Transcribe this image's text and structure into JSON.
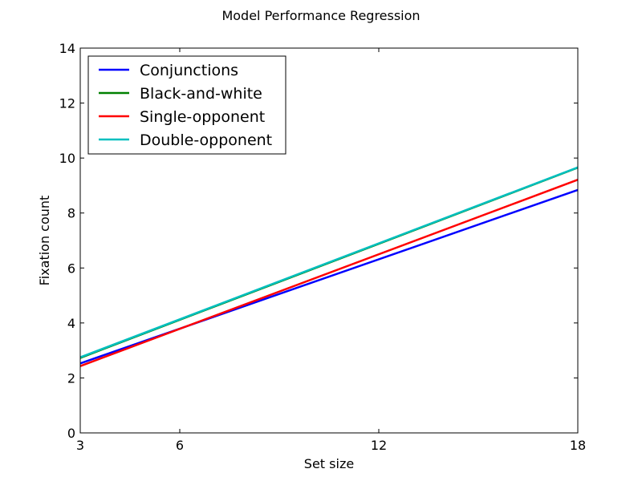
{
  "chart_data": {
    "type": "line",
    "title": "Model Performance Regression",
    "xlabel": "Set size",
    "ylabel": "Fixation count",
    "xlim": [
      3,
      18
    ],
    "ylim": [
      0,
      14
    ],
    "xticks": [
      3,
      6,
      12,
      18
    ],
    "yticks": [
      0,
      2,
      4,
      6,
      8,
      10,
      12,
      14
    ],
    "grid": false,
    "legend_position": "top-left",
    "series": [
      {
        "name": "Conjunctions",
        "color": "#0000ff",
        "x": [
          3,
          18
        ],
        "y": [
          2.53,
          8.84
        ]
      },
      {
        "name": "Black-and-white",
        "color": "#008000",
        "x": [
          3,
          18
        ],
        "y": [
          2.73,
          9.65
        ]
      },
      {
        "name": "Single-opponent",
        "color": "#ff0000",
        "x": [
          3,
          18
        ],
        "y": [
          2.43,
          9.21
        ]
      },
      {
        "name": "Double-opponent",
        "color": "#00bfbf",
        "x": [
          3,
          18
        ],
        "y": [
          2.75,
          9.66
        ]
      }
    ]
  }
}
